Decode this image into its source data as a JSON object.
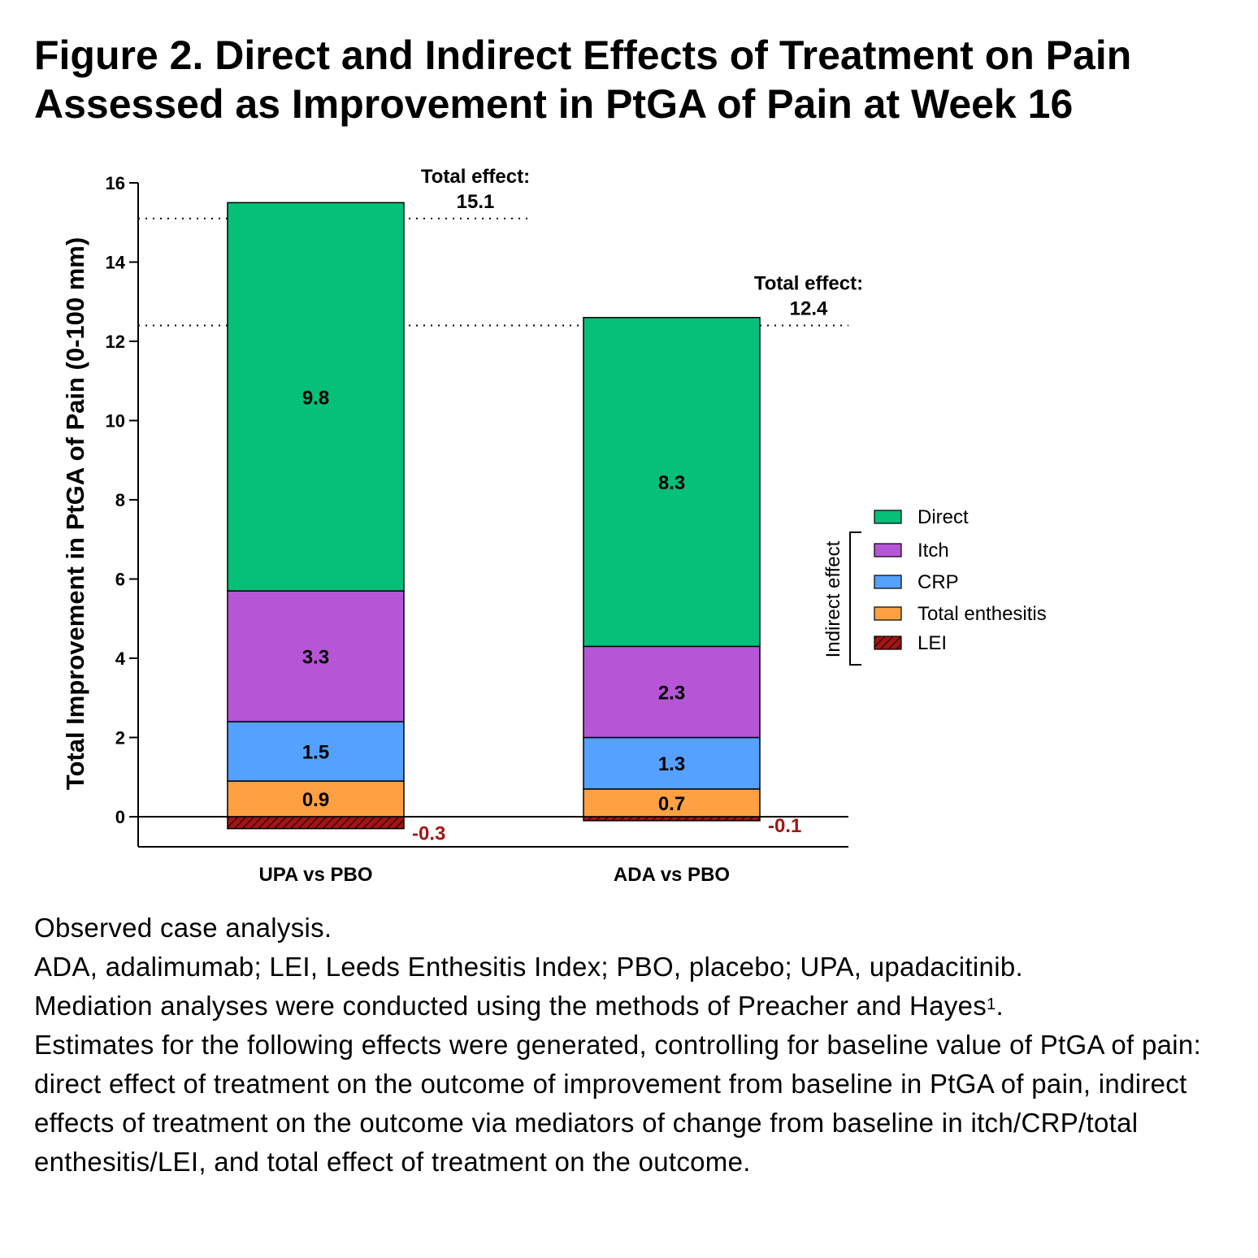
{
  "figure": {
    "title": "Figure 2. Direct and Indirect Effects of Treatment on Pain Assessed as Improvement in PtGA of Pain at Week 16"
  },
  "chart_data": {
    "type": "bar",
    "stacked": true,
    "ylabel": "Total Improvement in PtGA of Pain (0-100 mm)",
    "ylim": [
      -0.8,
      16
    ],
    "yticks": [
      0,
      2,
      4,
      6,
      8,
      10,
      12,
      14,
      16
    ],
    "categories": [
      "UPA vs PBO",
      "ADA vs PBO"
    ],
    "series": [
      {
        "name": "Total enthesitis",
        "values": [
          0.9,
          0.7
        ],
        "labels": [
          "0.9",
          "0.7"
        ],
        "color": "#FFA142"
      },
      {
        "name": "CRP",
        "values": [
          1.5,
          1.3
        ],
        "labels": [
          "1.5",
          "1.3"
        ],
        "color": "#55A1FF"
      },
      {
        "name": "Itch",
        "values": [
          3.3,
          2.3
        ],
        "labels": [
          "3.3",
          "2.3"
        ],
        "color": "#B656D6"
      },
      {
        "name": "Direct",
        "values": [
          9.8,
          8.3
        ],
        "labels": [
          "9.8",
          "8.3"
        ],
        "color": "#06BF78"
      },
      {
        "name": "LEI",
        "values": [
          -0.3,
          -0.1
        ],
        "labels": [
          "-0.3",
          "-0.1"
        ],
        "color": "#A31515"
      }
    ],
    "total_effect": {
      "label": "Total effect:",
      "values": [
        15.1,
        12.4
      ],
      "value_labels": [
        "15.1",
        "12.4"
      ]
    },
    "legend": {
      "placement": "right",
      "order": [
        "Direct",
        "Itch",
        "CRP",
        "Total enthesitis",
        "LEI"
      ],
      "bracket_label": "Indirect effect"
    },
    "negative_label_color": "#A31515",
    "grid": false
  },
  "caption": {
    "line1": "Observed case analysis.",
    "line2": "ADA, adalimumab; LEI, Leeds Enthesitis Index; PBO, placebo; UPA, upadacitinib.",
    "line3": "Mediation analyses were conducted using the methods of Preacher and Hayes",
    "line3_sup": "1",
    "line3_end": ".",
    "line4": "Estimates for the following effects were generated, controlling for baseline value of PtGA of pain: direct effect of treatment on the outcome of improvement from baseline in PtGA of pain, indirect effects of treatment on the outcome via mediators of change from baseline in itch/CRP/total enthesitis/LEI, and total effect of treatment on the outcome."
  }
}
